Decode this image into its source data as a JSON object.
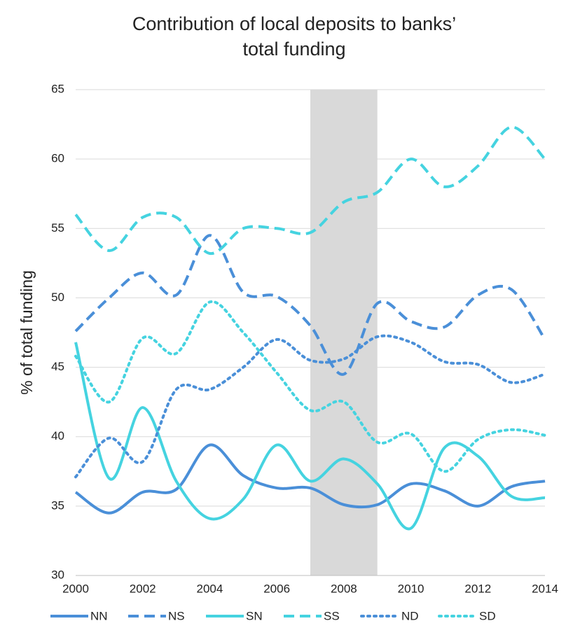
{
  "chart_data": {
    "type": "line",
    "title": [
      "Contribution of local deposits to banks’",
      "total funding"
    ],
    "ylabel": "% of total funding",
    "x": [
      2000,
      2001,
      2002,
      2003,
      2004,
      2005,
      2006,
      2007,
      2008,
      2009,
      2010,
      2011,
      2012,
      2013,
      2014
    ],
    "xlim": [
      2000,
      2014
    ],
    "xticks": [
      2000,
      2002,
      2004,
      2006,
      2008,
      2010,
      2012,
      2014
    ],
    "ylim": [
      30,
      65
    ],
    "yticks": [
      30,
      35,
      40,
      45,
      50,
      55,
      60,
      65
    ],
    "grid": true,
    "legend": "bottom",
    "shaded_region": {
      "x": [
        2007,
        2009
      ],
      "color": "#d9d9d9"
    },
    "series": [
      {
        "name": "NN",
        "color": "#4a8fd8",
        "dash": "solid",
        "values": [
          36,
          34.5,
          36,
          36.2,
          39.4,
          37.2,
          36.3,
          36.3,
          35.1,
          35.1,
          36.6,
          36.1,
          35,
          36.4,
          36.8
        ]
      },
      {
        "name": "NS",
        "color": "#4a8fd8",
        "dash": "dashed",
        "values": [
          47.6,
          50,
          51.8,
          50.2,
          54.5,
          50.4,
          50.1,
          48,
          44.5,
          49.6,
          48.3,
          47.9,
          50.2,
          50.6,
          47
        ]
      },
      {
        "name": "SN",
        "color": "#45d3e0",
        "dash": "solid",
        "values": [
          46.8,
          37,
          42.1,
          36.8,
          34.1,
          35.5,
          39.4,
          36.8,
          38.4,
          36.6,
          33.4,
          39.2,
          38.6,
          35.7,
          35.6
        ]
      },
      {
        "name": "SS",
        "color": "#45d3e0",
        "dash": "dashed",
        "values": [
          56,
          53.4,
          55.8,
          55.8,
          53.2,
          55,
          55,
          54.7,
          56.9,
          57.6,
          60,
          58,
          59.5,
          62.3,
          60
        ]
      },
      {
        "name": "ND",
        "color": "#4a8fd8",
        "dash": "dotted",
        "values": [
          37.1,
          39.9,
          38.2,
          43.4,
          43.4,
          45,
          47,
          45.5,
          45.6,
          47.2,
          46.8,
          45.4,
          45.2,
          43.9,
          44.5
        ]
      },
      {
        "name": "SD",
        "color": "#45d3e0",
        "dash": "dotted",
        "values": [
          45.8,
          42.5,
          47.1,
          46,
          49.7,
          47.5,
          44.6,
          41.9,
          42.5,
          39.6,
          40.2,
          37.5,
          39.8,
          40.5,
          40.1
        ]
      }
    ]
  }
}
